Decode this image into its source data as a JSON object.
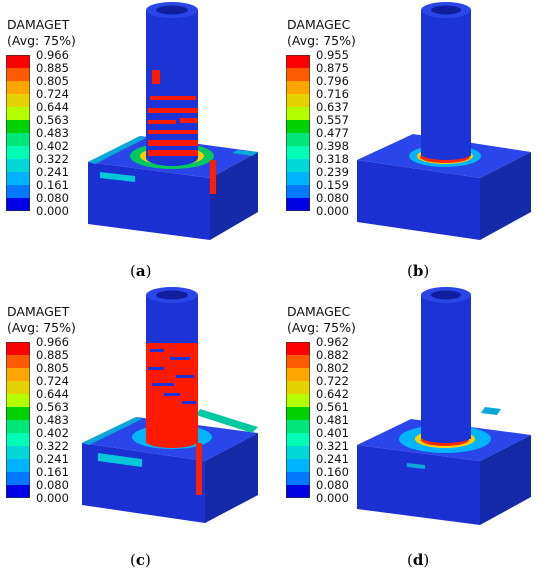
{
  "panels": [
    {
      "variable": "DAMAGET",
      "averaging": "(Avg: 75%)",
      "levels": [
        "0.966",
        "0.885",
        "0.805",
        "0.724",
        "0.644",
        "0.563",
        "0.483",
        "0.402",
        "0.322",
        "0.241",
        "0.161",
        "0.080",
        "0.000"
      ],
      "caption_letter": "a"
    },
    {
      "variable": "DAMAGEC",
      "averaging": "(Avg: 75%)",
      "levels": [
        "0.955",
        "0.875",
        "0.796",
        "0.716",
        "0.637",
        "0.557",
        "0.477",
        "0.398",
        "0.318",
        "0.239",
        "0.159",
        "0.080",
        "0.000"
      ],
      "caption_letter": "b"
    },
    {
      "variable": "DAMAGET",
      "averaging": "(Avg: 75%)",
      "levels": [
        "0.966",
        "0.885",
        "0.805",
        "0.724",
        "0.644",
        "0.563",
        "0.483",
        "0.402",
        "0.322",
        "0.241",
        "0.161",
        "0.080",
        "0.000"
      ],
      "caption_letter": "c"
    },
    {
      "variable": "DAMAGEC",
      "averaging": "(Avg: 75%)",
      "levels": [
        "0.962",
        "0.882",
        "0.802",
        "0.722",
        "0.642",
        "0.561",
        "0.481",
        "0.401",
        "0.321",
        "0.241",
        "0.160",
        "0.080",
        "0.000"
      ],
      "caption_letter": "d"
    }
  ],
  "colors": {
    "contour_scale": [
      "#ff0000",
      "#ff5a00",
      "#ffa500",
      "#e6d200",
      "#b4ff00",
      "#00d200",
      "#00e678",
      "#00ffb4",
      "#00d7d7",
      "#00b4ff",
      "#0078ff",
      "#0032ff",
      "#0000e6"
    ],
    "model_blue": "#1c33d6",
    "model_blue_dark": "#0f1f9e",
    "model_blue_light": "#3b55f0"
  }
}
